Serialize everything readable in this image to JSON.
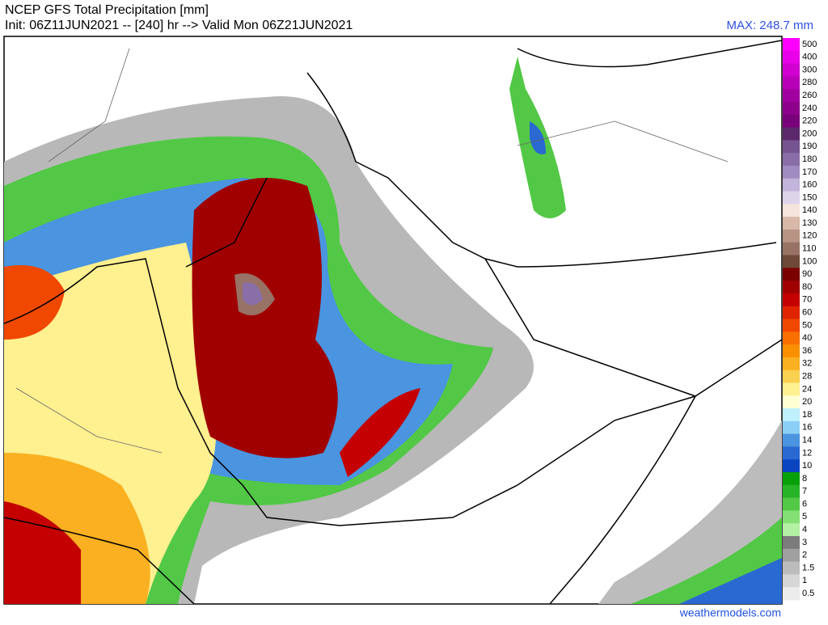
{
  "header": {
    "title": "NCEP GFS Total Precipitation [mm]",
    "init": "Init: 06Z11JUN2021 -- [240] hr --> Valid Mon 06Z21JUN2021",
    "max": "MAX: 248.7 mm"
  },
  "colorbar": {
    "labels": [
      "500",
      "400",
      "300",
      "280",
      "260",
      "240",
      "220",
      "200",
      "190",
      "180",
      "170",
      "160",
      "150",
      "140",
      "130",
      "120",
      "110",
      "100",
      "90",
      "80",
      "70",
      "60",
      "50",
      "40",
      "36",
      "32",
      "28",
      "24",
      "20",
      "18",
      "16",
      "14",
      "12",
      "10",
      "8",
      "7",
      "6",
      "5",
      "4",
      "3",
      "2",
      "1.5",
      "1",
      "0.5"
    ],
    "colors": [
      "#ff00ff",
      "#e800e8",
      "#d000d0",
      "#b800b8",
      "#a000a0",
      "#8c008c",
      "#780078",
      "#5c2a6c",
      "#765490",
      "#8a6ea8",
      "#a08cc0",
      "#c2b4da",
      "#ddd4ea",
      "#f4e4dc",
      "#d8b8a8",
      "#b89484",
      "#987264",
      "#6e4838",
      "#7a0000",
      "#a00000",
      "#c40000",
      "#e02400",
      "#f04800",
      "#f87000",
      "#fa9000",
      "#fab020",
      "#fad050",
      "#fff090",
      "#ffffd4",
      "#bef0fe",
      "#8ccff6",
      "#4a94e0",
      "#2a68d2",
      "#0a44c0",
      "#08a008",
      "#28b428",
      "#52c846",
      "#84e074",
      "#b4f0a4",
      "#7c7c7c",
      "#a0a0a0",
      "#bcbcbc",
      "#d6d6d6",
      "#ececec"
    ]
  },
  "footer": "weathermodels.com"
}
